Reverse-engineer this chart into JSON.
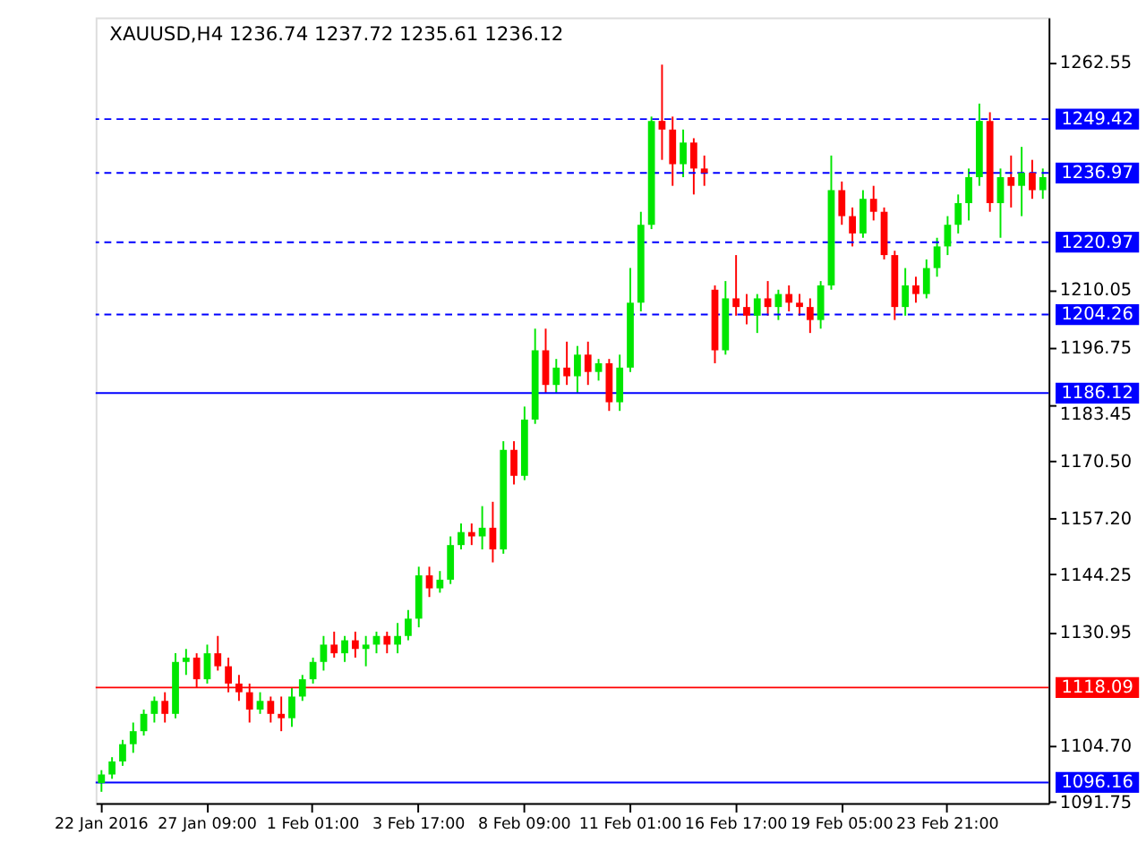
{
  "chart_data": {
    "type": "candlestick",
    "title": "XAUUSD,H4  1236.74 1237.72 1235.61 1236.12",
    "categories": [
      "22 Jan 2016",
      null,
      null,
      null,
      null,
      null,
      null,
      null,
      null,
      null,
      "27 Jan 09:00",
      null,
      null,
      null,
      null,
      null,
      null,
      null,
      null,
      null,
      "1 Feb 01:00",
      null,
      null,
      null,
      null,
      null,
      null,
      null,
      null,
      null,
      "3 Feb 17:00",
      null,
      null,
      null,
      null,
      null,
      null,
      null,
      null,
      null,
      "8 Feb 09:00",
      null,
      null,
      null,
      null,
      null,
      null,
      null,
      null,
      null,
      "11 Feb 01:00",
      null,
      null,
      null,
      null,
      null,
      null,
      null,
      null,
      null,
      "16 Feb 17:00",
      null,
      null,
      null,
      null,
      null,
      null,
      null,
      null,
      null,
      "19 Feb 05:00",
      null,
      null,
      null,
      null,
      null,
      null,
      null,
      null,
      null,
      "23 Feb 21:00",
      null,
      null,
      null,
      null,
      null,
      null,
      null,
      null,
      null
    ],
    "ohlc": [
      [
        1096,
        1099,
        1094,
        1098
      ],
      [
        1098,
        1102,
        1097,
        1101
      ],
      [
        1101,
        1106,
        1100,
        1105
      ],
      [
        1105,
        1110,
        1103,
        1108
      ],
      [
        1108,
        1113,
        1107,
        1112
      ],
      [
        1112,
        1116,
        1110,
        1115
      ],
      [
        1115,
        1117,
        1110,
        1112
      ],
      [
        1112,
        1126,
        1111,
        1124
      ],
      [
        1124,
        1127,
        1121,
        1125
      ],
      [
        1125,
        1126,
        1118,
        1120
      ],
      [
        1120,
        1128,
        1119,
        1126
      ],
      [
        1126,
        1130,
        1122,
        1123
      ],
      [
        1123,
        1125,
        1117,
        1119
      ],
      [
        1119,
        1121,
        1115,
        1117
      ],
      [
        1117,
        1119,
        1110,
        1113
      ],
      [
        1113,
        1117,
        1112,
        1115
      ],
      [
        1115,
        1116,
        1110,
        1112
      ],
      [
        1112,
        1116,
        1108,
        1111
      ],
      [
        1111,
        1118,
        1109,
        1116
      ],
      [
        1116,
        1121,
        1115,
        1120
      ],
      [
        1120,
        1125,
        1119,
        1124
      ],
      [
        1124,
        1130,
        1122,
        1128
      ],
      [
        1128,
        1131,
        1125,
        1126
      ],
      [
        1126,
        1130,
        1124,
        1129
      ],
      [
        1129,
        1131,
        1125,
        1127
      ],
      [
        1127,
        1130,
        1123,
        1128
      ],
      [
        1128,
        1131,
        1126,
        1130
      ],
      [
        1130,
        1131,
        1126,
        1128
      ],
      [
        1128,
        1133,
        1126,
        1130
      ],
      [
        1130,
        1136,
        1129,
        1134
      ],
      [
        1134,
        1146,
        1132,
        1144
      ],
      [
        1144,
        1146,
        1139,
        1141
      ],
      [
        1141,
        1145,
        1140,
        1143
      ],
      [
        1143,
        1153,
        1142,
        1151
      ],
      [
        1151,
        1156,
        1150,
        1154
      ],
      [
        1154,
        1156,
        1151,
        1153
      ],
      [
        1153,
        1160,
        1150,
        1155
      ],
      [
        1155,
        1161,
        1147,
        1150
      ],
      [
        1150,
        1175,
        1149,
        1173
      ],
      [
        1173,
        1175,
        1165,
        1167
      ],
      [
        1167,
        1183,
        1166,
        1180
      ],
      [
        1180,
        1201,
        1179,
        1196
      ],
      [
        1196,
        1201,
        1186,
        1188
      ],
      [
        1188,
        1194,
        1186,
        1192
      ],
      [
        1192,
        1198,
        1188,
        1190
      ],
      [
        1190,
        1197,
        1186,
        1195
      ],
      [
        1195,
        1198,
        1188,
        1191
      ],
      [
        1191,
        1194,
        1189,
        1193
      ],
      [
        1193,
        1194,
        1182,
        1184
      ],
      [
        1184,
        1195,
        1182,
        1192
      ],
      [
        1192,
        1215,
        1191,
        1207
      ],
      [
        1207,
        1228,
        1205,
        1225
      ],
      [
        1225,
        1250,
        1224,
        1249
      ],
      [
        1249,
        1262,
        1240,
        1247
      ],
      [
        1247,
        1250,
        1234,
        1239
      ],
      [
        1239,
        1247,
        1236,
        1244
      ],
      [
        1244,
        1245,
        1232,
        1238
      ],
      [
        1238,
        1241,
        1234,
        1237
      ],
      [
        1210,
        1211,
        1193,
        1196
      ],
      [
        1196,
        1212,
        1195,
        1208
      ],
      [
        1208,
        1218,
        1204,
        1206
      ],
      [
        1206,
        1209,
        1202,
        1204
      ],
      [
        1204,
        1209,
        1200,
        1208
      ],
      [
        1208,
        1212,
        1204,
        1206
      ],
      [
        1206,
        1210,
        1203,
        1209
      ],
      [
        1209,
        1211,
        1205,
        1207
      ],
      [
        1207,
        1209,
        1204,
        1206
      ],
      [
        1206,
        1208,
        1200,
        1203
      ],
      [
        1203,
        1212,
        1201,
        1211
      ],
      [
        1211,
        1241,
        1210,
        1233
      ],
      [
        1233,
        1235,
        1225,
        1227
      ],
      [
        1227,
        1229,
        1220,
        1223
      ],
      [
        1223,
        1233,
        1222,
        1231
      ],
      [
        1231,
        1234,
        1226,
        1228
      ],
      [
        1228,
        1229,
        1217,
        1218
      ],
      [
        1218,
        1219,
        1203,
        1206
      ],
      [
        1206,
        1215,
        1204,
        1211
      ],
      [
        1211,
        1213,
        1207,
        1209
      ],
      [
        1209,
        1217,
        1208,
        1215
      ],
      [
        1215,
        1222,
        1213,
        1220
      ],
      [
        1220,
        1227,
        1218,
        1225
      ],
      [
        1225,
        1232,
        1223,
        1230
      ],
      [
        1230,
        1238,
        1226,
        1236
      ],
      [
        1236,
        1253,
        1234,
        1249
      ],
      [
        1249,
        1251,
        1228,
        1230
      ],
      [
        1230,
        1238,
        1222,
        1236
      ],
      [
        1236,
        1241,
        1229,
        1234
      ],
      [
        1234,
        1243,
        1227,
        1237
      ],
      [
        1237,
        1240,
        1231,
        1233
      ],
      [
        1233,
        1238,
        1231,
        1236
      ]
    ],
    "colors": [
      "#00e600",
      "#00e600",
      "#00e600",
      "#00e600",
      "#00e600",
      "#00e600",
      "#ff0000",
      "#00e600",
      "#00e600",
      "#ff0000",
      "#00e600",
      "#ff0000",
      "#ff0000",
      "#ff0000",
      "#ff0000",
      "#00e600",
      "#ff0000",
      "#ff0000",
      "#00e600",
      "#00e600",
      "#00e600",
      "#00e600",
      "#ff0000",
      "#00e600",
      "#ff0000",
      "#00e600",
      "#00e600",
      "#ff0000",
      "#00e600",
      "#00e600",
      "#00e600",
      "#ff0000",
      "#00e600",
      "#00e600",
      "#00e600",
      "#ff0000",
      "#00e600",
      "#ff0000",
      "#00e600",
      "#ff0000",
      "#00e600",
      "#00e600",
      "#ff0000",
      "#00e600",
      "#ff0000",
      "#00e600",
      "#ff0000",
      "#00e600",
      "#ff0000",
      "#00e600",
      "#00e600",
      "#00e600",
      "#00e600",
      "#ff0000",
      "#ff0000",
      "#00e600",
      "#ff0000",
      "#ff0000",
      "#ff0000",
      "#00e600",
      "#ff0000",
      "#ff0000",
      "#00e600",
      "#ff0000",
      "#00e600",
      "#ff0000",
      "#ff0000",
      "#ff0000",
      "#00e600",
      "#00e600",
      "#ff0000",
      "#ff0000",
      "#00e600",
      "#ff0000",
      "#ff0000",
      "#ff0000",
      "#00e600",
      "#ff0000",
      "#00e600",
      "#00e600",
      "#00e600",
      "#00e600",
      "#00e600",
      "#00e600",
      "#ff0000",
      "#00e600",
      "#ff0000",
      "#00e600",
      "#ff0000",
      "#00e600"
    ],
    "ylim": [
      1091.4,
      1272.9
    ],
    "yticks": [
      {
        "value": 1091.75,
        "label": "1091.75"
      },
      {
        "value": 1104.7,
        "label": "1104.70"
      },
      {
        "value": 1130.95,
        "label": "1130.95"
      },
      {
        "value": 1144.25,
        "label": "1144.25"
      },
      {
        "value": 1157.2,
        "label": "1157.20"
      },
      {
        "value": 1170.5,
        "label": "1170.50"
      },
      {
        "value": 1183.45,
        "label": "1183.45"
      },
      {
        "value": 1196.75,
        "label": "1196.75"
      },
      {
        "value": 1210.05,
        "label": "1210.05"
      },
      {
        "value": 1262.55,
        "label": "1262.55"
      }
    ],
    "ref_lines": [
      {
        "axis": "y",
        "value": 1249.42,
        "label": "1249.42",
        "color": "#0000ff",
        "line_style": "dashed"
      },
      {
        "axis": "y",
        "value": 1236.97,
        "label": "1236.97",
        "color": "#0000ff",
        "line_style": "dashed"
      },
      {
        "axis": "y",
        "value": 1220.97,
        "label": "1220.97",
        "color": "#0000ff",
        "line_style": "dashed"
      },
      {
        "axis": "y",
        "value": 1204.26,
        "label": "1204.26",
        "color": "#0000ff",
        "line_style": "dashed"
      },
      {
        "axis": "y",
        "value": 1186.12,
        "label": "1186.12",
        "color": "#0000ff",
        "line_style": "solid"
      },
      {
        "axis": "y",
        "value": 1118.09,
        "label": "1118.09",
        "color": "#ff0000",
        "line_style": "solid"
      },
      {
        "axis": "y",
        "value": 1096.16,
        "label": "1096.16",
        "color": "#0000ff",
        "line_style": "solid"
      }
    ]
  }
}
